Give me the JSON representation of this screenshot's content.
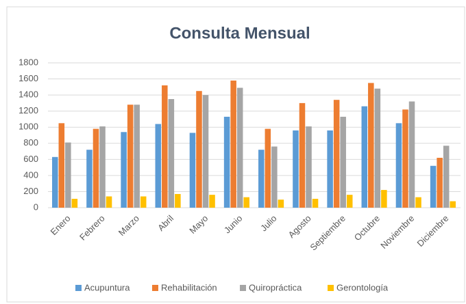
{
  "chart_data": {
    "type": "bar",
    "title": "Consulta  Mensual",
    "categories": [
      "Enero",
      "Febrero",
      "Marzo",
      "Abril",
      "Mayo",
      "Junio",
      "Julio",
      "Agosto",
      "Septiembre",
      "Octubre",
      "Noviembre",
      "Diciembre"
    ],
    "series": [
      {
        "name": "Acupuntura",
        "color": "#5b9bd5",
        "values": [
          630,
          720,
          940,
          1040,
          930,
          1130,
          720,
          960,
          960,
          1260,
          1050,
          520
        ]
      },
      {
        "name": "Rehabilitación",
        "color": "#ed7d31",
        "values": [
          1050,
          980,
          1280,
          1520,
          1450,
          1580,
          980,
          1300,
          1340,
          1550,
          1220,
          620
        ]
      },
      {
        "name": "Quiropráctica",
        "color": "#a5a5a5",
        "values": [
          810,
          1010,
          1280,
          1350,
          1400,
          1490,
          760,
          1010,
          1130,
          1480,
          1320,
          770
        ]
      },
      {
        "name": "Gerontología",
        "color": "#ffc000",
        "values": [
          110,
          140,
          140,
          170,
          160,
          130,
          100,
          110,
          160,
          220,
          130,
          80
        ]
      }
    ],
    "ylim": [
      0,
      1800
    ],
    "yticks": [
      0,
      200,
      400,
      600,
      800,
      1000,
      1200,
      1400,
      1600,
      1800
    ],
    "grid": true,
    "legend": "bottom"
  }
}
